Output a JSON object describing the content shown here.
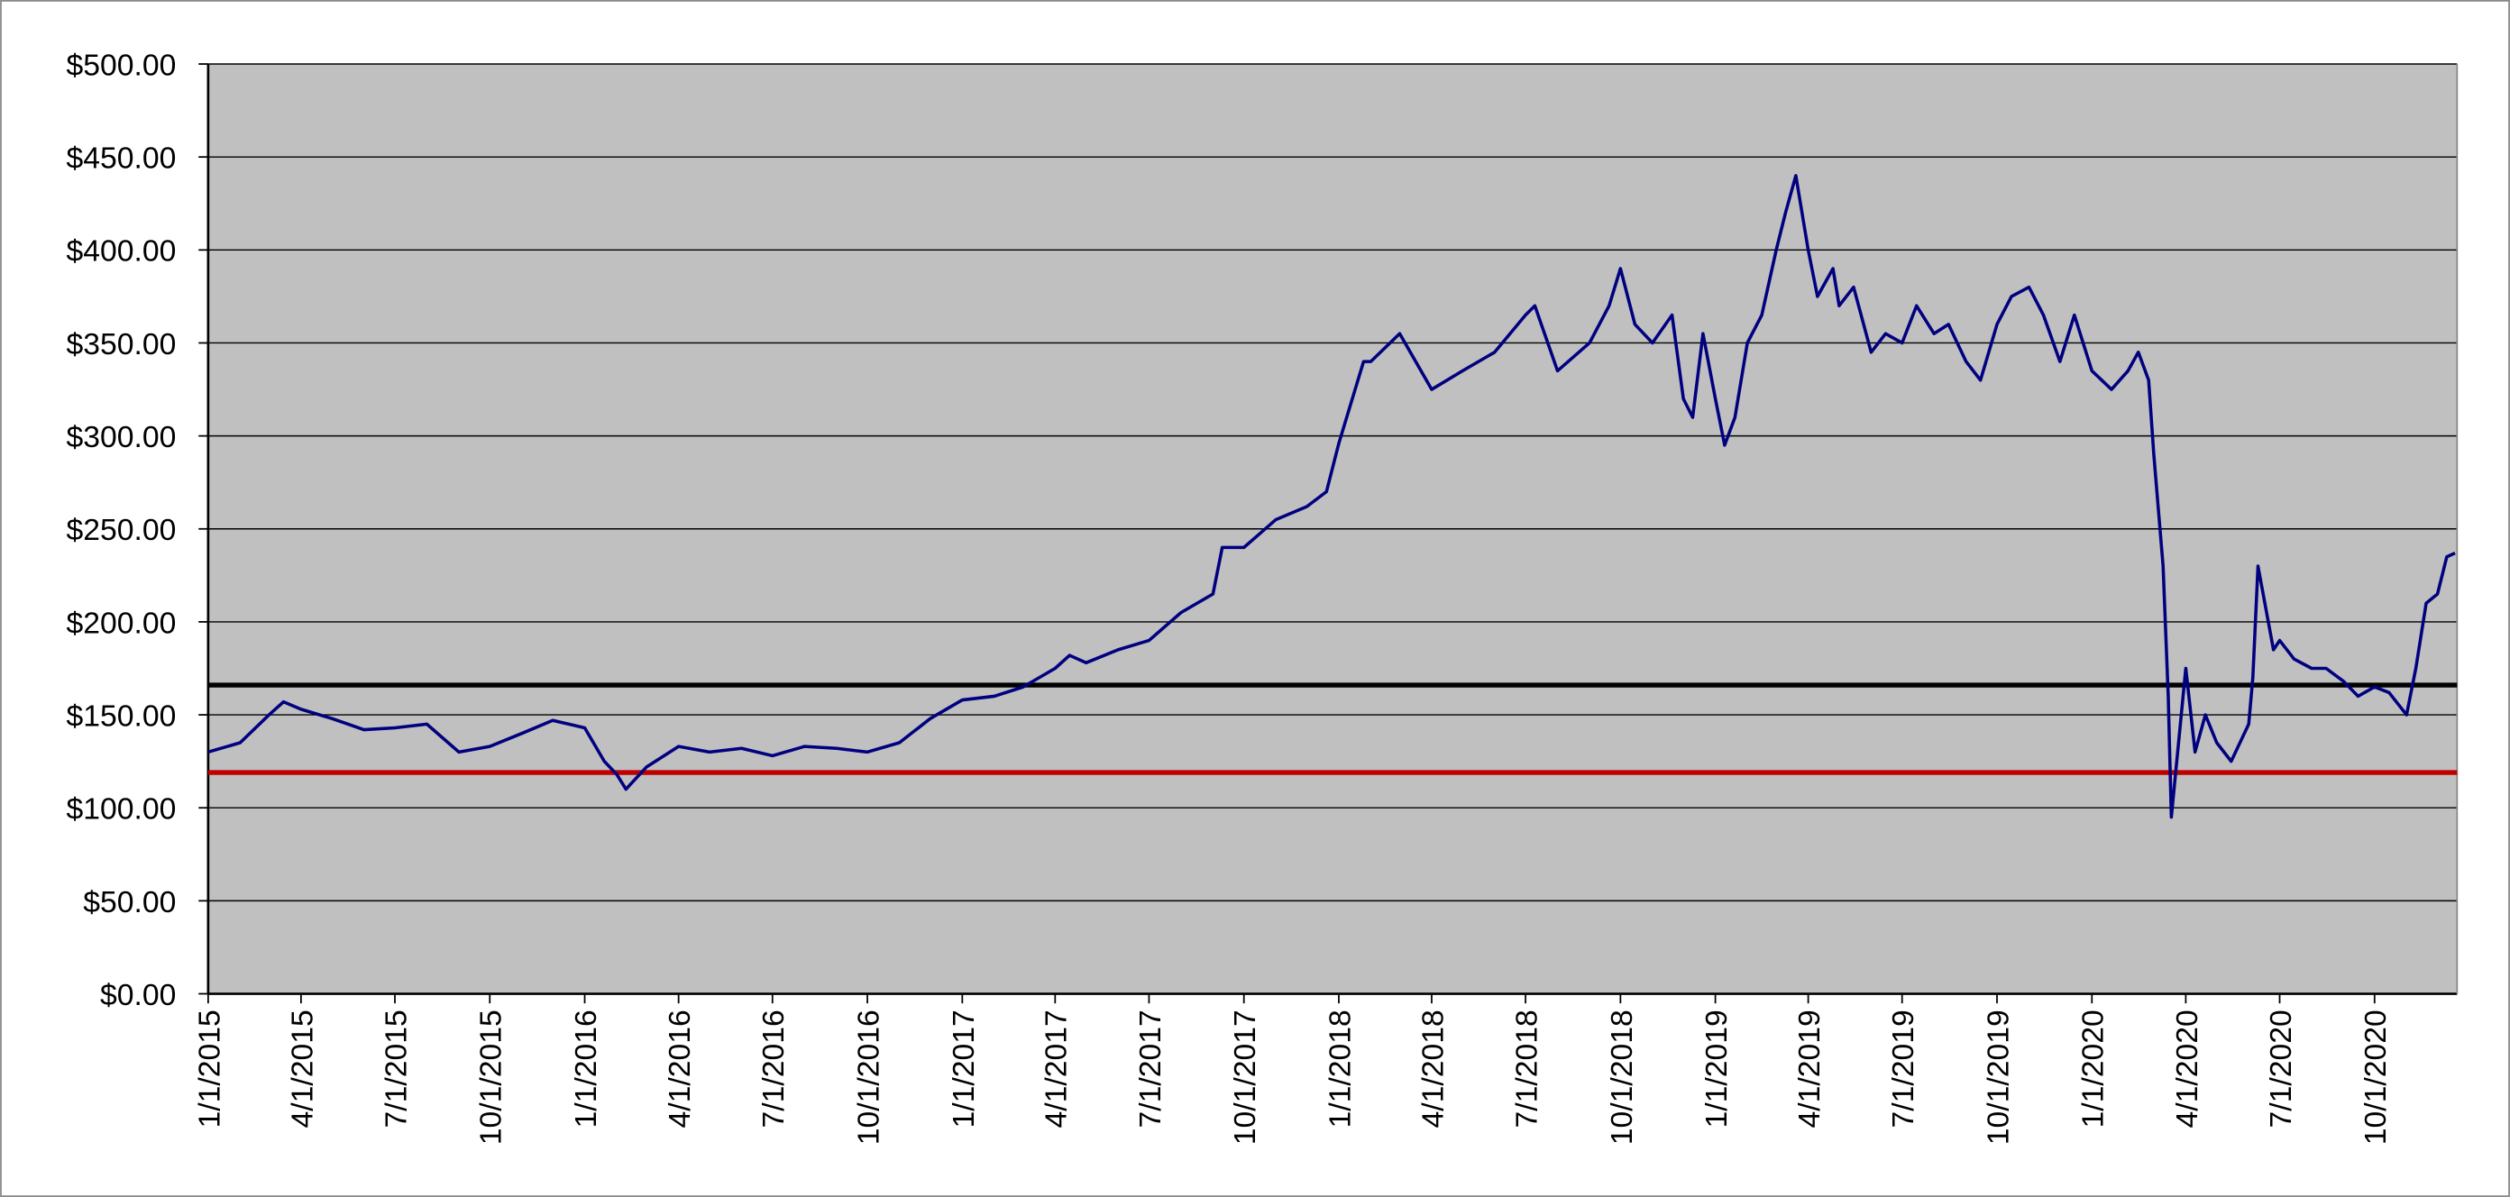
{
  "chart_data": {
    "type": "line",
    "x": [
      "1/1/2015",
      "2/1/2015",
      "3/1/2015",
      "3/15/2015",
      "4/1/2015",
      "5/1/2015",
      "6/1/2015",
      "7/1/2015",
      "8/1/2015",
      "9/1/2015",
      "10/1/2015",
      "11/1/2015",
      "12/1/2015",
      "1/1/2016",
      "1/20/2016",
      "2/1/2016",
      "2/10/2016",
      "3/1/2016",
      "4/1/2016",
      "5/1/2016",
      "6/1/2016",
      "7/1/2016",
      "8/1/2016",
      "9/1/2016",
      "10/1/2016",
      "11/1/2016",
      "12/1/2016",
      "1/1/2017",
      "2/1/2017",
      "3/1/2017",
      "4/1/2017",
      "4/15/2017",
      "5/1/2017",
      "6/1/2017",
      "7/1/2017",
      "8/1/2017",
      "9/1/2017",
      "9/10/2017",
      "10/1/2017",
      "11/1/2017",
      "12/1/2017",
      "12/20/2017",
      "1/1/2018",
      "1/25/2018",
      "2/1/2018",
      "3/1/2018",
      "4/1/2018",
      "5/1/2018",
      "6/1/2018",
      "7/1/2018",
      "7/10/2018",
      "8/1/2018",
      "9/1/2018",
      "9/20/2018",
      "10/1/2018",
      "10/15/2018",
      "11/1/2018",
      "11/20/2018",
      "12/1/2018",
      "12/10/2018",
      "12/20/2018",
      "1/1/2019",
      "1/10/2019",
      "1/20/2019",
      "2/1/2019",
      "2/15/2019",
      "3/1/2019",
      "3/10/2019",
      "3/20/2019",
      "4/1/2019",
      "4/10/2019",
      "4/25/2019",
      "5/1/2019",
      "5/15/2019",
      "6/1/2019",
      "6/15/2019",
      "7/1/2019",
      "7/15/2019",
      "8/1/2019",
      "8/15/2019",
      "9/1/2019",
      "9/15/2019",
      "10/1/2019",
      "10/15/2019",
      "11/1/2019",
      "11/15/2019",
      "12/1/2019",
      "12/15/2019",
      "1/1/2020",
      "1/20/2020",
      "2/5/2020",
      "2/15/2020",
      "2/25/2020",
      "3/1/2020",
      "3/10/2020",
      "3/15/2020",
      "3/18/2020",
      "4/1/2020",
      "4/10/2020",
      "4/20/2020",
      "5/1/2020",
      "5/15/2020",
      "6/1/2020",
      "6/5/2020",
      "6/10/2020",
      "6/25/2020",
      "7/1/2020",
      "7/15/2020",
      "8/1/2020",
      "8/15/2020",
      "9/1/2020",
      "9/15/2020",
      "10/1/2020",
      "10/15/2020",
      "11/1/2020",
      "11/10/2020",
      "11/20/2020",
      "12/1/2020",
      "12/10/2020",
      "12/18/2020"
    ],
    "series": [
      {
        "color": "#000080",
        "values": [
          130,
          135,
          150,
          157,
          153,
          148,
          142,
          143,
          145,
          130,
          133,
          140,
          147,
          143,
          125,
          118,
          110,
          122,
          133,
          130,
          132,
          128,
          133,
          132,
          130,
          135,
          148,
          158,
          160,
          165,
          175,
          182,
          178,
          185,
          190,
          205,
          215,
          240,
          240,
          255,
          262,
          270,
          296,
          340,
          340,
          355,
          325,
          335,
          345,
          365,
          370,
          335,
          350,
          370,
          390,
          360,
          350,
          365,
          320,
          310,
          355,
          320,
          295,
          310,
          350,
          365,
          400,
          420,
          440,
          400,
          375,
          390,
          370,
          380,
          345,
          355,
          350,
          370,
          355,
          360,
          340,
          330,
          360,
          375,
          380,
          365,
          340,
          365,
          335,
          325,
          335,
          345,
          330,
          290,
          230,
          160,
          95,
          175,
          130,
          150,
          135,
          125,
          145,
          170,
          230,
          185,
          190,
          180,
          175,
          175,
          168,
          160,
          165,
          162,
          150,
          175,
          210,
          215,
          235,
          237
        ]
      }
    ],
    "reference_lines": [
      {
        "value": 166,
        "color": "#000000"
      },
      {
        "value": 119,
        "color": "#c00000"
      }
    ],
    "xlim": [
      "1/1/2015",
      "12/20/2020"
    ],
    "xticks": [
      "1/1/2015",
      "4/1/2015",
      "7/1/2015",
      "10/1/2015",
      "1/1/2016",
      "4/1/2016",
      "7/1/2016",
      "10/1/2016",
      "1/1/2017",
      "4/1/2017",
      "7/1/2017",
      "10/1/2017",
      "1/1/2018",
      "4/1/2018",
      "7/1/2018",
      "10/1/2018",
      "1/1/2019",
      "4/1/2019",
      "7/1/2019",
      "10/1/2019",
      "1/1/2020",
      "4/1/2020",
      "7/1/2020",
      "10/1/2020"
    ],
    "ylim": [
      0,
      500
    ],
    "yticks": [
      {
        "value": 0,
        "label": "$0.00"
      },
      {
        "value": 50,
        "label": "$50.00"
      },
      {
        "value": 100,
        "label": "$100.00"
      },
      {
        "value": 150,
        "label": "$150.00"
      },
      {
        "value": 200,
        "label": "$200.00"
      },
      {
        "value": 250,
        "label": "$250.00"
      },
      {
        "value": 300,
        "label": "$300.00"
      },
      {
        "value": 350,
        "label": "$350.00"
      },
      {
        "value": 400,
        "label": "$400.00"
      },
      {
        "value": 450,
        "label": "$450.00"
      },
      {
        "value": 500,
        "label": "$500.00"
      }
    ],
    "grid": true,
    "plot_background": "#c0c0c0"
  }
}
